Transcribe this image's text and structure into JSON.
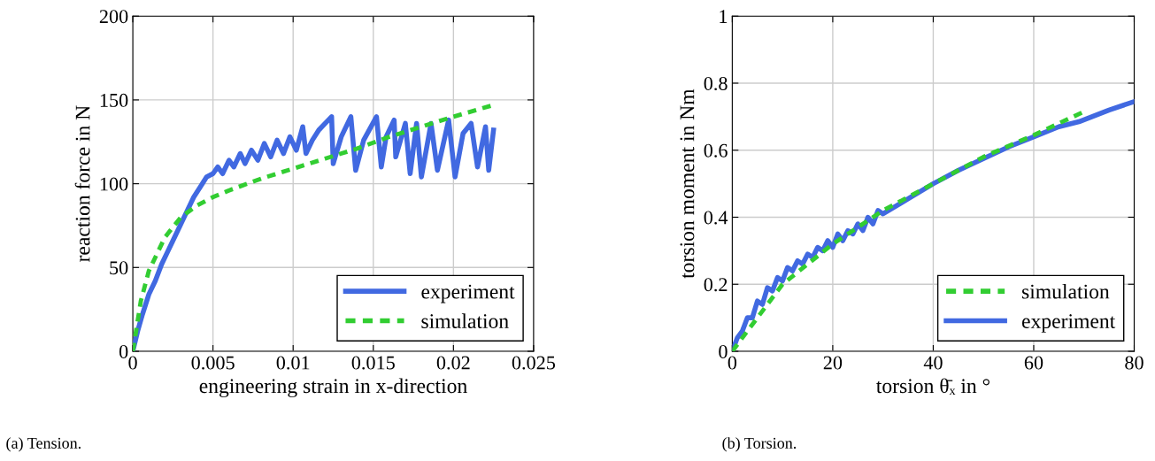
{
  "chart_data": [
    {
      "type": "line",
      "xlabel": "engineering strain in x-direction",
      "ylabel": "reaction force in N",
      "xlim": [
        0,
        0.025
      ],
      "xticks": [
        0,
        0.005,
        0.01,
        0.015,
        0.02,
        0.025
      ],
      "ylim": [
        0,
        200
      ],
      "yticks": [
        0,
        50,
        100,
        150,
        200
      ],
      "grid": true,
      "legend": "bottom right",
      "annotations": [
        "(a) Tension."
      ],
      "series": [
        {
          "name": "experiment",
          "color": "#4169e1",
          "line_style": "solid",
          "x": [
            0,
            0.0003,
            0.0006,
            0.001,
            0.0014,
            0.0018,
            0.0022,
            0.0026,
            0.003,
            0.0034,
            0.0038,
            0.0042,
            0.0046,
            0.005,
            0.0053,
            0.0056,
            0.006,
            0.0063,
            0.0067,
            0.007,
            0.0074,
            0.0078,
            0.0082,
            0.0086,
            0.009,
            0.0094,
            0.0098,
            0.0102,
            0.0106,
            0.0108,
            0.0112,
            0.0116,
            0.012,
            0.0124,
            0.0125,
            0.013,
            0.0136,
            0.0139,
            0.0144,
            0.0152,
            0.0155,
            0.0158,
            0.0163,
            0.0164,
            0.017,
            0.0173,
            0.0177,
            0.018,
            0.0186,
            0.019,
            0.0197,
            0.0201,
            0.0206,
            0.0211,
            0.0215,
            0.022,
            0.0222,
            0.0225
          ],
          "values": [
            0,
            12,
            22,
            34,
            42,
            52,
            60,
            68,
            76,
            84,
            92,
            98,
            104,
            106,
            110,
            106,
            114,
            110,
            118,
            112,
            120,
            114,
            124,
            116,
            126,
            118,
            128,
            120,
            134,
            118,
            126,
            132,
            136,
            140,
            112,
            128,
            140,
            108,
            126,
            140,
            110,
            128,
            138,
            116,
            136,
            106,
            136,
            104,
            136,
            108,
            138,
            104,
            130,
            136,
            110,
            134,
            108,
            132
          ]
        },
        {
          "name": "simulation",
          "color": "#32cd32",
          "line_style": "dashed",
          "x": [
            0,
            0.0005,
            0.001,
            0.002,
            0.003,
            0.004,
            0.005,
            0.006,
            0.008,
            0.01,
            0.012,
            0.014,
            0.016,
            0.018,
            0.02,
            0.0225
          ],
          "values": [
            0,
            30,
            48,
            68,
            80,
            87,
            92,
            96,
            103,
            109,
            115,
            121,
            128,
            134,
            140,
            147
          ]
        }
      ]
    },
    {
      "type": "line",
      "xlabel": "torsion θ̄ₓ in °",
      "ylabel": "torsion moment in Nm",
      "xlim": [
        0,
        80
      ],
      "xticks": [
        0,
        20,
        40,
        60,
        80
      ],
      "ylim": [
        0,
        1
      ],
      "yticks": [
        0,
        0.2,
        0.4,
        0.6,
        0.8,
        1
      ],
      "grid": true,
      "legend": "bottom right",
      "annotations": [
        "(b) Torsion."
      ],
      "series": [
        {
          "name": "simulation",
          "color": "#32cd32",
          "line_style": "dashed",
          "x": [
            0,
            10,
            20,
            30,
            40,
            50,
            60,
            70
          ],
          "values": [
            0,
            0.2,
            0.32,
            0.42,
            0.5,
            0.58,
            0.645,
            0.715
          ]
        },
        {
          "name": "experiment",
          "color": "#4169e1",
          "line_style": "solid",
          "x": [
            0,
            1,
            2,
            3,
            4,
            5,
            6,
            7,
            8,
            9,
            10,
            11,
            12,
            13,
            14,
            15,
            16,
            17,
            18,
            19,
            20,
            21,
            22,
            23,
            24,
            25,
            26,
            27,
            28,
            29,
            30,
            35,
            40,
            45,
            50,
            55,
            60,
            65,
            69,
            75,
            80
          ],
          "values": [
            0,
            0.04,
            0.06,
            0.1,
            0.1,
            0.15,
            0.14,
            0.19,
            0.18,
            0.22,
            0.21,
            0.25,
            0.24,
            0.27,
            0.26,
            0.29,
            0.28,
            0.31,
            0.3,
            0.33,
            0.31,
            0.35,
            0.33,
            0.36,
            0.35,
            0.38,
            0.36,
            0.4,
            0.38,
            0.42,
            0.41,
            0.455,
            0.5,
            0.54,
            0.575,
            0.61,
            0.64,
            0.67,
            0.685,
            0.72,
            0.745
          ]
        }
      ]
    }
  ]
}
